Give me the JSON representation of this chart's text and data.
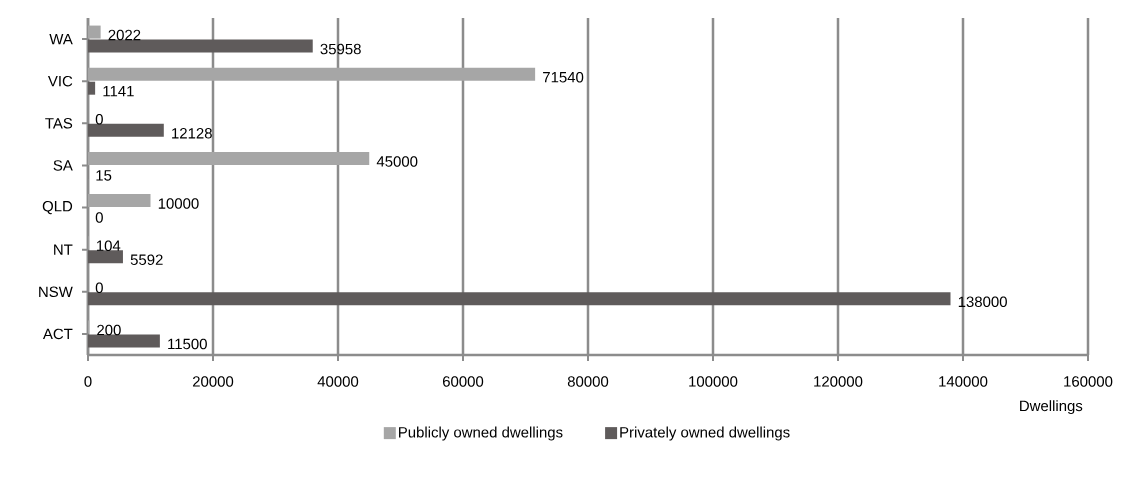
{
  "chart_data": {
    "type": "bar",
    "orientation": "horizontal",
    "categories": [
      "WA",
      "VIC",
      "TAS",
      "SA",
      "QLD",
      "NT",
      "NSW",
      "ACT"
    ],
    "series": [
      {
        "name": "Publicly owned dwellings",
        "color": "#a6a6a6",
        "values": [
          2022,
          71540,
          0,
          45000,
          10000,
          104,
          0,
          200
        ]
      },
      {
        "name": "Privately owned dwellings",
        "color": "#5f5b5b",
        "values": [
          35958,
          1141,
          12128,
          15,
          0,
          5592,
          138000,
          11500
        ]
      }
    ],
    "xlabel": "Dwellings",
    "xlim": [
      0,
      160000
    ],
    "xticks": [
      0,
      20000,
      40000,
      60000,
      80000,
      100000,
      120000,
      140000,
      160000
    ],
    "grid": "x",
    "legend": "bottom",
    "data_labels": true
  }
}
